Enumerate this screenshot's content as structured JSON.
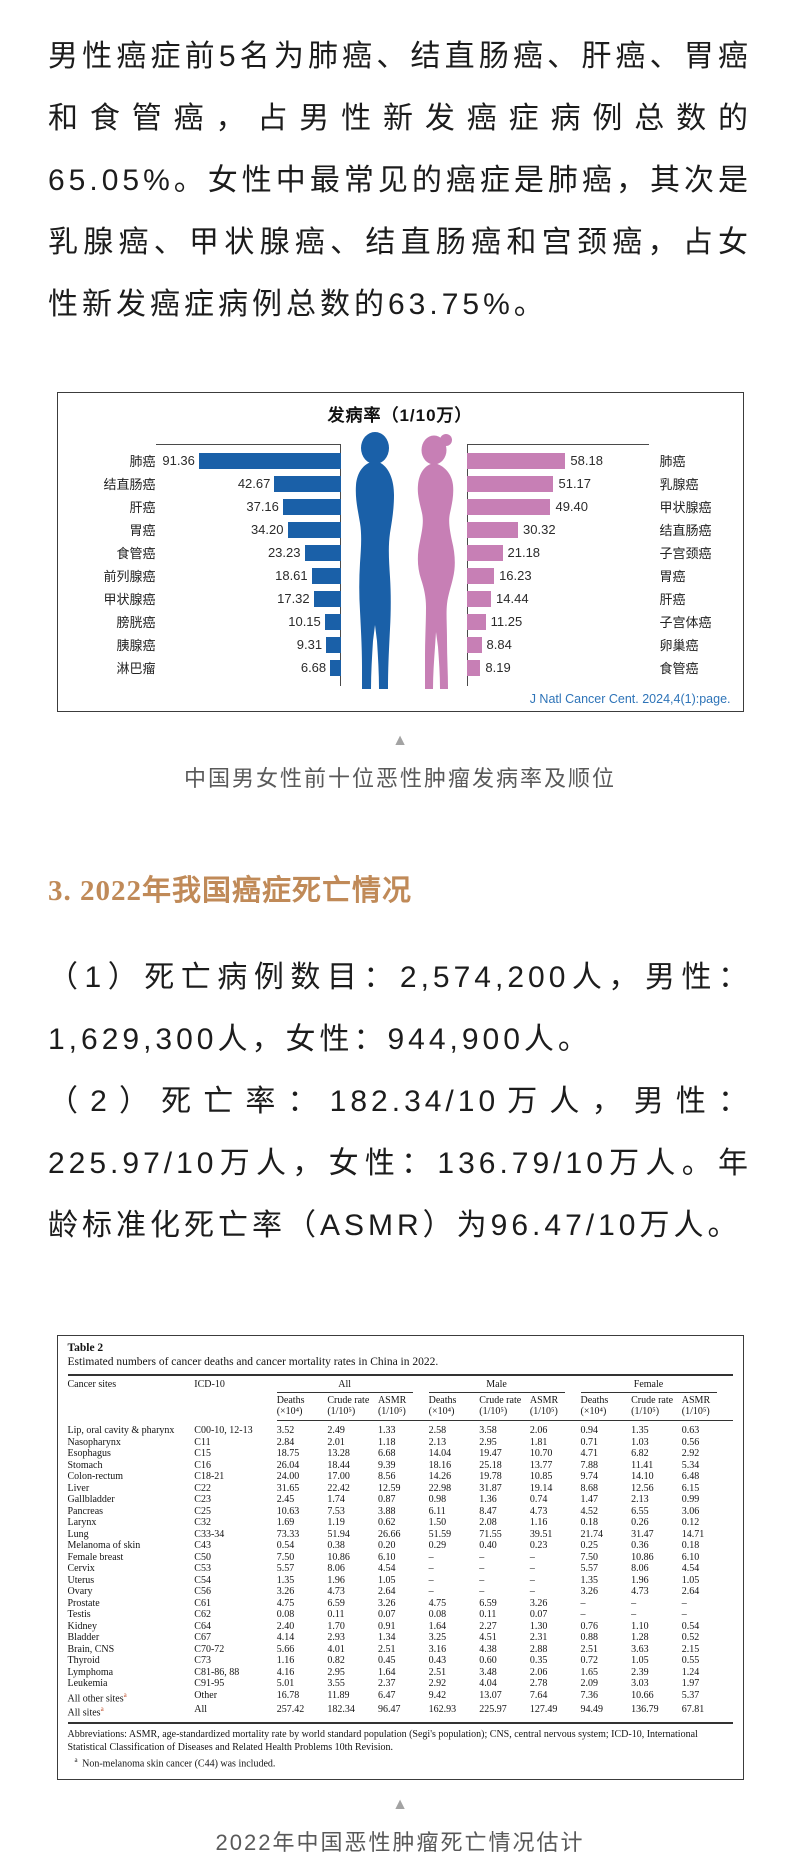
{
  "page": {
    "paragraph1": "男性癌症前5名为肺癌、结直肠癌、肝癌、胃癌和食管癌，占男性新发癌症病例总数的65.05%。女性中最常见的癌症是肺癌，其次是乳腺癌、甲状腺癌、结直肠癌和宫颈癌，占女性新发癌症病例总数的63.75%。",
    "triangle_icon": "▲",
    "figure1_caption": "中国男女性前十位恶性肿瘤发病率及顺位",
    "section_heading": "3. 2022年我国癌症死亡情况",
    "paragraph2": "（1）死亡病例数目：2,574,200人，男性：1,629,300人，女性：944,900人。",
    "paragraph3": "（2）死亡率：182.34/10万人，男性：225.97/10万人，女性：136.79/10万人。年龄标准化死亡率（ASMR）为96.47/10万人。",
    "figure2_caption": "2022年中国恶性肿瘤死亡情况估计"
  },
  "chart_data": {
    "type": "bar",
    "layout": "back-to-back horizontal bars, male left / female right",
    "title": "发病率（1/10万）",
    "unit": "1/10万",
    "source": "J Natl Cancer Cent. 2024,4(1):page.",
    "series": [
      {
        "name": "男性",
        "color": "#1a60a8",
        "data": [
          {
            "label": "肺癌",
            "value": "91.36"
          },
          {
            "label": "结直肠癌",
            "value": "42.67"
          },
          {
            "label": "肝癌",
            "value": "37.16"
          },
          {
            "label": "胃癌",
            "value": "34.20"
          },
          {
            "label": "食管癌",
            "value": "23.23"
          },
          {
            "label": "前列腺癌",
            "value": "18.61"
          },
          {
            "label": "甲状腺癌",
            "value": "17.32"
          },
          {
            "label": "膀胱癌",
            "value": "10.15"
          },
          {
            "label": "胰腺癌",
            "value": "9.31"
          },
          {
            "label": "淋巴瘤",
            "value": "6.68"
          }
        ]
      },
      {
        "name": "女性",
        "color": "#c77fb5",
        "data": [
          {
            "label": "肺癌",
            "value": "58.18"
          },
          {
            "label": "乳腺癌",
            "value": "51.17"
          },
          {
            "label": "甲状腺癌",
            "value": "49.40"
          },
          {
            "label": "结直肠癌",
            "value": "30.32"
          },
          {
            "label": "子宫颈癌",
            "value": "21.18"
          },
          {
            "label": "胃癌",
            "value": "16.23"
          },
          {
            "label": "肝癌",
            "value": "14.44"
          },
          {
            "label": "子宫体癌",
            "value": "11.25"
          },
          {
            "label": "卵巢癌",
            "value": "8.84"
          },
          {
            "label": "食管癌",
            "value": "8.19"
          }
        ]
      }
    ]
  },
  "table": {
    "title": "Table 2",
    "subtitle": "Estimated numbers of cancer deaths and cancer mortality rates in China in 2022.",
    "col1_header": "Cancer sites",
    "col2_header": "ICD-10",
    "groups": [
      "All",
      "Male",
      "Female"
    ],
    "subheaders": [
      {
        "line1": "Deaths",
        "line2": "(×10⁴)"
      },
      {
        "line1": "Crude rate",
        "line2": "(1/10⁵)"
      },
      {
        "line1": "ASMR",
        "line2": "(1/10⁵)"
      }
    ],
    "rows": [
      {
        "site": "Lip, oral cavity & pharynx",
        "icd": "C00-10, 12-13",
        "values": [
          "3.52",
          "2.49",
          "1.33",
          "2.58",
          "3.58",
          "2.06",
          "0.94",
          "1.35",
          "0.63"
        ]
      },
      {
        "site": "Nasopharynx",
        "icd": "C11",
        "values": [
          "2.84",
          "2.01",
          "1.18",
          "2.13",
          "2.95",
          "1.81",
          "0.71",
          "1.03",
          "0.56"
        ]
      },
      {
        "site": "Esophagus",
        "icd": "C15",
        "values": [
          "18.75",
          "13.28",
          "6.68",
          "14.04",
          "19.47",
          "10.70",
          "4.71",
          "6.82",
          "2.92"
        ]
      },
      {
        "site": "Stomach",
        "icd": "C16",
        "values": [
          "26.04",
          "18.44",
          "9.39",
          "18.16",
          "25.18",
          "13.77",
          "7.88",
          "11.41",
          "5.34"
        ]
      },
      {
        "site": "Colon-rectum",
        "icd": "C18-21",
        "values": [
          "24.00",
          "17.00",
          "8.56",
          "14.26",
          "19.78",
          "10.85",
          "9.74",
          "14.10",
          "6.48"
        ]
      },
      {
        "site": "Liver",
        "icd": "C22",
        "values": [
          "31.65",
          "22.42",
          "12.59",
          "22.98",
          "31.87",
          "19.14",
          "8.68",
          "12.56",
          "6.15"
        ]
      },
      {
        "site": "Gallbladder",
        "icd": "C23",
        "values": [
          "2.45",
          "1.74",
          "0.87",
          "0.98",
          "1.36",
          "0.74",
          "1.47",
          "2.13",
          "0.99"
        ]
      },
      {
        "site": "Pancreas",
        "icd": "C25",
        "values": [
          "10.63",
          "7.53",
          "3.88",
          "6.11",
          "8.47",
          "4.73",
          "4.52",
          "6.55",
          "3.06"
        ]
      },
      {
        "site": "Larynx",
        "icd": "C32",
        "values": [
          "1.69",
          "1.19",
          "0.62",
          "1.50",
          "2.08",
          "1.16",
          "0.18",
          "0.26",
          "0.12"
        ]
      },
      {
        "site": "Lung",
        "icd": "C33-34",
        "values": [
          "73.33",
          "51.94",
          "26.66",
          "51.59",
          "71.55",
          "39.51",
          "21.74",
          "31.47",
          "14.71"
        ]
      },
      {
        "site": "Melanoma of skin",
        "icd": "C43",
        "values": [
          "0.54",
          "0.38",
          "0.20",
          "0.29",
          "0.40",
          "0.23",
          "0.25",
          "0.36",
          "0.18"
        ]
      },
      {
        "site": "Female breast",
        "icd": "C50",
        "values": [
          "7.50",
          "10.86",
          "6.10",
          "–",
          "–",
          "–",
          "7.50",
          "10.86",
          "6.10"
        ]
      },
      {
        "site": "Cervix",
        "icd": "C53",
        "values": [
          "5.57",
          "8.06",
          "4.54",
          "–",
          "–",
          "–",
          "5.57",
          "8.06",
          "4.54"
        ]
      },
      {
        "site": "Uterus",
        "icd": "C54",
        "values": [
          "1.35",
          "1.96",
          "1.05",
          "–",
          "–",
          "–",
          "1.35",
          "1.96",
          "1.05"
        ]
      },
      {
        "site": "Ovary",
        "icd": "C56",
        "values": [
          "3.26",
          "4.73",
          "2.64",
          "–",
          "–",
          "–",
          "3.26",
          "4.73",
          "2.64"
        ]
      },
      {
        "site": "Prostate",
        "icd": "C61",
        "values": [
          "4.75",
          "6.59",
          "3.26",
          "4.75",
          "6.59",
          "3.26",
          "–",
          "–",
          "–"
        ]
      },
      {
        "site": "Testis",
        "icd": "C62",
        "values": [
          "0.08",
          "0.11",
          "0.07",
          "0.08",
          "0.11",
          "0.07",
          "–",
          "–",
          "–"
        ]
      },
      {
        "site": "Kidney",
        "icd": "C64",
        "values": [
          "2.40",
          "1.70",
          "0.91",
          "1.64",
          "2.27",
          "1.30",
          "0.76",
          "1.10",
          "0.54"
        ]
      },
      {
        "site": "Bladder",
        "icd": "C67",
        "values": [
          "4.14",
          "2.93",
          "1.34",
          "3.25",
          "4.51",
          "2.31",
          "0.88",
          "1.28",
          "0.52"
        ]
      },
      {
        "site": "Brain, CNS",
        "icd": "C70-72",
        "values": [
          "5.66",
          "4.01",
          "2.51",
          "3.16",
          "4.38",
          "2.88",
          "2.51",
          "3.63",
          "2.15"
        ]
      },
      {
        "site": "Thyroid",
        "icd": "C73",
        "values": [
          "1.16",
          "0.82",
          "0.45",
          "0.43",
          "0.60",
          "0.35",
          "0.72",
          "1.05",
          "0.55"
        ]
      },
      {
        "site": "Lymphoma",
        "icd": "C81-86, 88",
        "values": [
          "4.16",
          "2.95",
          "1.64",
          "2.51",
          "3.48",
          "2.06",
          "1.65",
          "2.39",
          "1.24"
        ]
      },
      {
        "site": "Leukemia",
        "icd": "C91-95",
        "values": [
          "5.01",
          "3.55",
          "2.37",
          "2.92",
          "4.04",
          "2.78",
          "2.09",
          "3.03",
          "1.97"
        ]
      },
      {
        "site": "All other sites",
        "marker": "a",
        "icd": "Other",
        "values": [
          "16.78",
          "11.89",
          "6.47",
          "9.42",
          "13.07",
          "7.64",
          "7.36",
          "10.66",
          "5.37"
        ]
      },
      {
        "site": "All sites",
        "marker": "a",
        "icd": "All",
        "values": [
          "257.42",
          "182.34",
          "96.47",
          "162.93",
          "225.97",
          "127.49",
          "94.49",
          "136.79",
          "67.81"
        ]
      }
    ],
    "footnote1": "Abbreviations: ASMR, age-standardized mortality rate by world standard population (Segi's population); CNS, central nervous system; ICD-10, International Statistical Classification of Diseases and Related Health Problems 10th Revision.",
    "footnote2_marker": "a",
    "footnote2": "Non-melanoma skin cancer (C44) was included."
  }
}
